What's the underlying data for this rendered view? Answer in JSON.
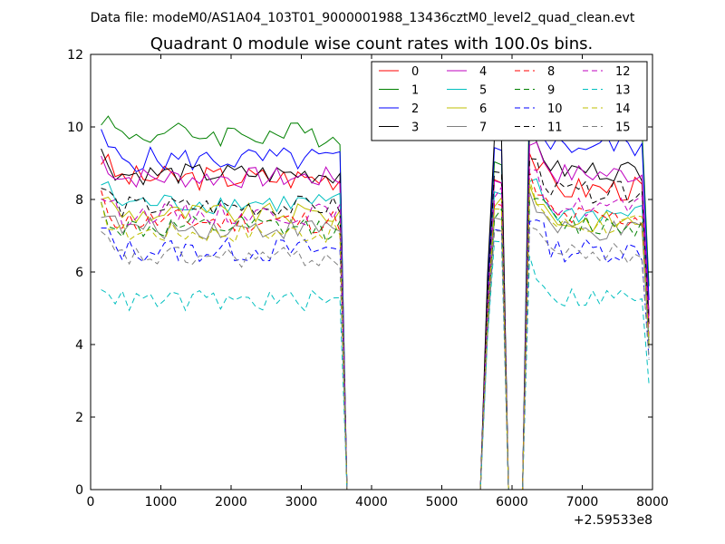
{
  "chart_data": {
    "type": "line",
    "suptitle": "Data file: modeM0/AS1A04_103T01_9000001988_13436cztM0_level2_quad_clean.evt",
    "title": "Quadrant 0 module wise count rates with 100.0s bins.",
    "xlabel": "",
    "ylabel": "",
    "xlim": [
      0,
      8000
    ],
    "ylim": [
      0,
      12
    ],
    "x_offset_label": "+2.59533e8",
    "xticks": [
      0,
      1000,
      2000,
      3000,
      4000,
      5000,
      6000,
      7000,
      8000
    ],
    "xtick_labels": [
      "0",
      "1000",
      "2000",
      "3000",
      "4000",
      "5000",
      "6000",
      "7000",
      "8000"
    ],
    "yticks": [
      0,
      2,
      4,
      6,
      8,
      10,
      12
    ],
    "ytick_labels": [
      "0",
      "2",
      "4",
      "6",
      "8",
      "10",
      "12"
    ],
    "legend_position": "top-right",
    "legend_columns": 4,
    "x": [
      150,
      250,
      350,
      450,
      550,
      650,
      750,
      850,
      950,
      1050,
      1150,
      1250,
      1350,
      1450,
      1550,
      1650,
      1750,
      1850,
      1950,
      2050,
      2150,
      2250,
      2350,
      2450,
      2550,
      2650,
      2750,
      2850,
      2950,
      3050,
      3150,
      3250,
      3350,
      3450,
      3550,
      3650,
      3750,
      3850,
      3950,
      4050,
      4150,
      4250,
      4350,
      4450,
      4550,
      4650,
      4750,
      4850,
      4950,
      5050,
      5150,
      5250,
      5350,
      5450,
      5550,
      5650,
      5750,
      5850,
      5950,
      6050,
      6150,
      6250,
      6350,
      6450,
      6550,
      6650,
      6750,
      6850,
      6950,
      7050,
      7150,
      7250,
      7350,
      7450,
      7550,
      7650,
      7750,
      7850,
      7950
    ],
    "series": [
      {
        "name": "0",
        "color": "#ff0000",
        "dash": "solid",
        "base": 8.6,
        "late": 8.3,
        "peak": 8.6,
        "amp": 0.35
      },
      {
        "name": "1",
        "color": "#008000",
        "dash": "solid",
        "base": 9.8,
        "late": 10.2,
        "peak": 9.0,
        "amp": 0.35
      },
      {
        "name": "2",
        "color": "#0000ff",
        "dash": "solid",
        "base": 9.1,
        "late": 9.5,
        "peak": 9.3,
        "amp": 0.35
      },
      {
        "name": "3",
        "color": "#000000",
        "dash": "solid",
        "base": 8.7,
        "late": 8.8,
        "peak": 9.8,
        "amp": 0.3
      },
      {
        "name": "4",
        "color": "#bf00bf",
        "dash": "solid",
        "base": 8.6,
        "late": 8.7,
        "peak": 8.5,
        "amp": 0.3
      },
      {
        "name": "5",
        "color": "#00bfbf",
        "dash": "solid",
        "base": 7.9,
        "late": 7.6,
        "peak": 8.1,
        "amp": 0.3
      },
      {
        "name": "6",
        "color": "#bfbf00",
        "dash": "solid",
        "base": 7.6,
        "late": 7.4,
        "peak": 7.9,
        "amp": 0.3
      },
      {
        "name": "7",
        "color": "#808080",
        "dash": "solid",
        "base": 7.2,
        "late": 7.1,
        "peak": 7.5,
        "amp": 0.3
      },
      {
        "name": "8",
        "color": "#ff0000",
        "dash": "dashed",
        "base": 7.4,
        "late": 7.5,
        "peak": 7.8,
        "amp": 0.35
      },
      {
        "name": "9",
        "color": "#008000",
        "dash": "dashed",
        "base": 7.2,
        "late": 7.3,
        "peak": 7.6,
        "amp": 0.35
      },
      {
        "name": "10",
        "color": "#0000ff",
        "dash": "dashed",
        "base": 6.6,
        "late": 6.6,
        "peak": 7.2,
        "amp": 0.35
      },
      {
        "name": "11",
        "color": "#000000",
        "dash": "dashed",
        "base": 7.8,
        "late": 8.2,
        "peak": 8.7,
        "amp": 0.3
      },
      {
        "name": "12",
        "color": "#bf00bf",
        "dash": "dashed",
        "base": 7.6,
        "late": 7.8,
        "peak": 8.2,
        "amp": 0.3
      },
      {
        "name": "13",
        "color": "#00bfbf",
        "dash": "dashed",
        "base": 5.2,
        "late": 5.3,
        "peak": 6.9,
        "amp": 0.3
      },
      {
        "name": "14",
        "color": "#bfbf00",
        "dash": "dashed",
        "base": 7.1,
        "late": 7.3,
        "peak": 7.7,
        "amp": 0.3
      },
      {
        "name": "15",
        "color": "#808080",
        "dash": "dashed",
        "base": 6.4,
        "late": 6.5,
        "peak": 7.0,
        "amp": 0.3
      }
    ]
  }
}
